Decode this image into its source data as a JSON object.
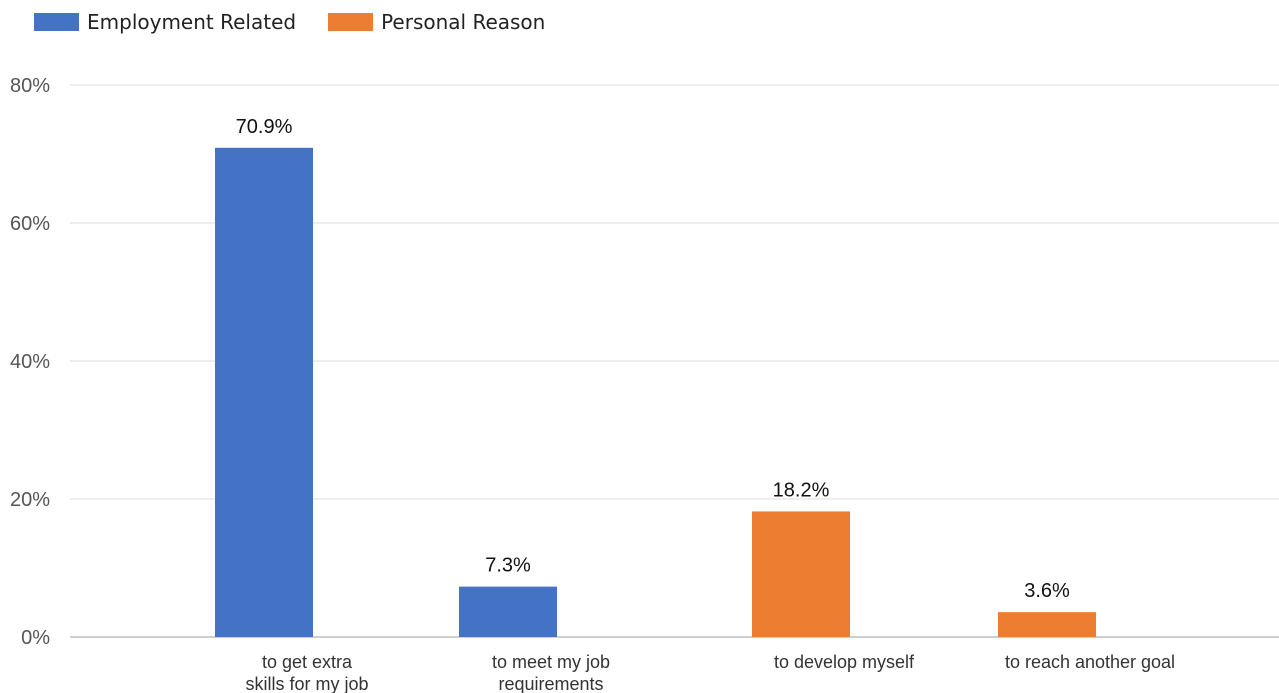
{
  "chart_data": {
    "type": "bar",
    "categories": [
      [
        "to get extra",
        "skills for my job"
      ],
      [
        "to meet my job",
        "requirements"
      ],
      [
        "to develop myself"
      ],
      [
        "to reach another goal"
      ]
    ],
    "series": [
      {
        "name": "Employment Related",
        "color": "#4472c4",
        "values": [
          70.9,
          7.3,
          null,
          null
        ]
      },
      {
        "name": "Personal Reason",
        "color": "#ed7d31",
        "values": [
          null,
          null,
          18.2,
          3.6
        ]
      }
    ],
    "data_labels": [
      "70.9%",
      "7.3%",
      "18.2%",
      "3.6%"
    ],
    "y_ticks": [
      "0%",
      "20%",
      "40%",
      "60%",
      "80%"
    ],
    "ylim": [
      0,
      80
    ],
    "grid": true,
    "legend_position": "top-left"
  }
}
